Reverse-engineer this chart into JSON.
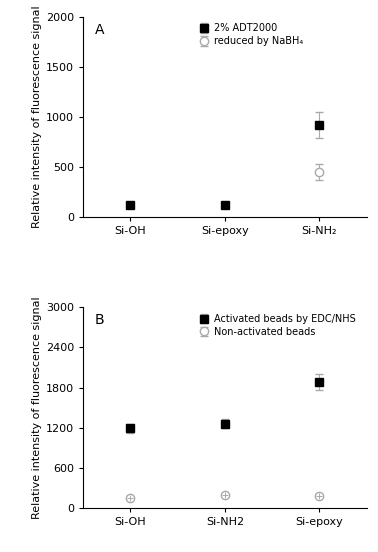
{
  "panel_A": {
    "title": "A",
    "categories": [
      "Si-OH",
      "Si-epoxy",
      "Si-NH₂"
    ],
    "x_positions": [
      0,
      1,
      2
    ],
    "series1": {
      "label": "2% ADT2000",
      "values": [
        120,
        120,
        920
      ],
      "errors": [
        15,
        15,
        130
      ],
      "marker": "s",
      "color": "black",
      "ecolor": "#aaaaaa"
    },
    "series2": {
      "label": "reduced by NaBH₄",
      "values": [
        null,
        null,
        450
      ],
      "errors": [
        null,
        null,
        80
      ],
      "marker": "o",
      "color": "#aaaaaa",
      "ecolor": "#aaaaaa"
    },
    "ylabel": "Relative intensity of fluorescence signal",
    "ylim": [
      0,
      2000
    ],
    "yticks": [
      0,
      500,
      1000,
      1500,
      2000
    ]
  },
  "panel_B": {
    "title": "B",
    "categories": [
      "Si-OH",
      "Si-NH2",
      "Si-epoxy"
    ],
    "x_positions": [
      0,
      1,
      2
    ],
    "series1": {
      "label": "Activated beads by EDC/NHS",
      "values": [
        1190,
        1260,
        1880
      ],
      "errors": [
        65,
        70,
        120
      ],
      "marker": "s",
      "color": "black",
      "ecolor": "#aaaaaa"
    },
    "series2": {
      "label": "Non-activated beads",
      "values": [
        150,
        190,
        180
      ],
      "errors": [
        20,
        20,
        20
      ],
      "marker": "o",
      "color": "#aaaaaa",
      "ecolor": "#aaaaaa"
    },
    "ylabel": "Relative intensity of fluorescence signal",
    "ylim": [
      0,
      3000
    ],
    "yticks": [
      0,
      600,
      1200,
      1800,
      2400,
      3000
    ]
  },
  "figure_bg": "#ffffff",
  "axes_bg": "#ffffff",
  "markersize": 6,
  "capsize": 3,
  "elinewidth": 0.8,
  "font_size": 8
}
